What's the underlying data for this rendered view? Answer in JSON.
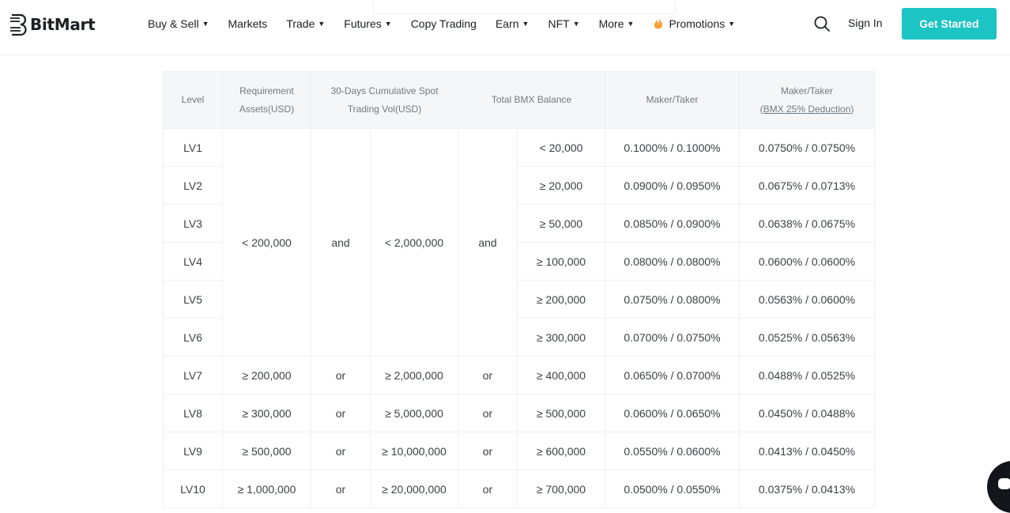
{
  "brand": {
    "name": "BitMart"
  },
  "nav": {
    "items": [
      {
        "label": "Buy & Sell",
        "has_caret": true
      },
      {
        "label": "Markets",
        "has_caret": false
      },
      {
        "label": "Trade",
        "has_caret": true
      },
      {
        "label": "Futures",
        "has_caret": true
      },
      {
        "label": "Copy Trading",
        "has_caret": false
      },
      {
        "label": "Earn",
        "has_caret": true
      },
      {
        "label": "NFT",
        "has_caret": true
      },
      {
        "label": "More",
        "has_caret": true
      },
      {
        "label": "Promotions",
        "has_caret": true,
        "icon": "fire-icon"
      }
    ],
    "search_icon": "search-icon",
    "signin_label": "Sign In",
    "get_started_label": "Get Started"
  },
  "colors": {
    "accent": "#1dc4c4",
    "text": "#1c1f23",
    "header_bg": "#f4f6f8",
    "border": "#eef0f2",
    "fire": "#f7a13a"
  },
  "table": {
    "headers": {
      "level": "Level",
      "requirement_line1": "Requirement",
      "requirement_line2": "Assets(USD)",
      "volume_line1": "30-Days Cumulative Spot",
      "volume_line2": "Trading Vol(USD)",
      "bmx": "Total BMX Balance",
      "maker_taker": "Maker/Taker",
      "maker_taker_bmx_line1": "Maker/Taker",
      "maker_taker_bmx_line2": "(BMX 25% Deduction)"
    },
    "merged_group": {
      "assets": "< 200,000",
      "connector1": "and",
      "volume": "< 2,000,000",
      "connector2": "and"
    },
    "rows": [
      {
        "level": "LV1",
        "bmx": "< 20,000",
        "fee": "0.1000% / 0.1000%",
        "fee_bmx": "0.0750% / 0.0750%"
      },
      {
        "level": "LV2",
        "bmx": "≥ 20,000",
        "fee": "0.0900% / 0.0950%",
        "fee_bmx": "0.0675% / 0.0713%"
      },
      {
        "level": "LV3",
        "bmx": "≥ 50,000",
        "fee": "0.0850% / 0.0900%",
        "fee_bmx": "0.0638% / 0.0675%"
      },
      {
        "level": "LV4",
        "bmx": "≥ 100,000",
        "fee": "0.0800% / 0.0800%",
        "fee_bmx": "0.0600% / 0.0600%"
      },
      {
        "level": "LV5",
        "bmx": "≥ 200,000",
        "fee": "0.0750% / 0.0800%",
        "fee_bmx": "0.0563% / 0.0600%"
      },
      {
        "level": "LV6",
        "bmx": "≥ 300,000",
        "fee": "0.0700% / 0.0750%",
        "fee_bmx": "0.0525% / 0.0563%"
      },
      {
        "level": "LV7",
        "assets": "≥ 200,000",
        "c1": "or",
        "volume": "≥ 2,000,000",
        "c2": "or",
        "bmx": "≥ 400,000",
        "fee": "0.0650% / 0.0700%",
        "fee_bmx": "0.0488% / 0.0525%"
      },
      {
        "level": "LV8",
        "assets": "≥ 300,000",
        "c1": "or",
        "volume": "≥ 5,000,000",
        "c2": "or",
        "bmx": "≥ 500,000",
        "fee": "0.0600% / 0.0650%",
        "fee_bmx": "0.0450% / 0.0488%"
      },
      {
        "level": "LV9",
        "assets": "≥ 500,000",
        "c1": "or",
        "volume": "≥ 10,000,000",
        "c2": "or",
        "bmx": "≥ 600,000",
        "fee": "0.0550% / 0.0600%",
        "fee_bmx": "0.0413% / 0.0450%"
      },
      {
        "level": "LV10",
        "assets": "≥ 1,000,000",
        "c1": "or",
        "volume": "≥ 20,000,000",
        "c2": "or",
        "bmx": "≥ 700,000",
        "fee": "0.0500% / 0.0550%",
        "fee_bmx": "0.0375% / 0.0413%"
      }
    ]
  },
  "chat": {
    "icon": "chat-icon"
  }
}
